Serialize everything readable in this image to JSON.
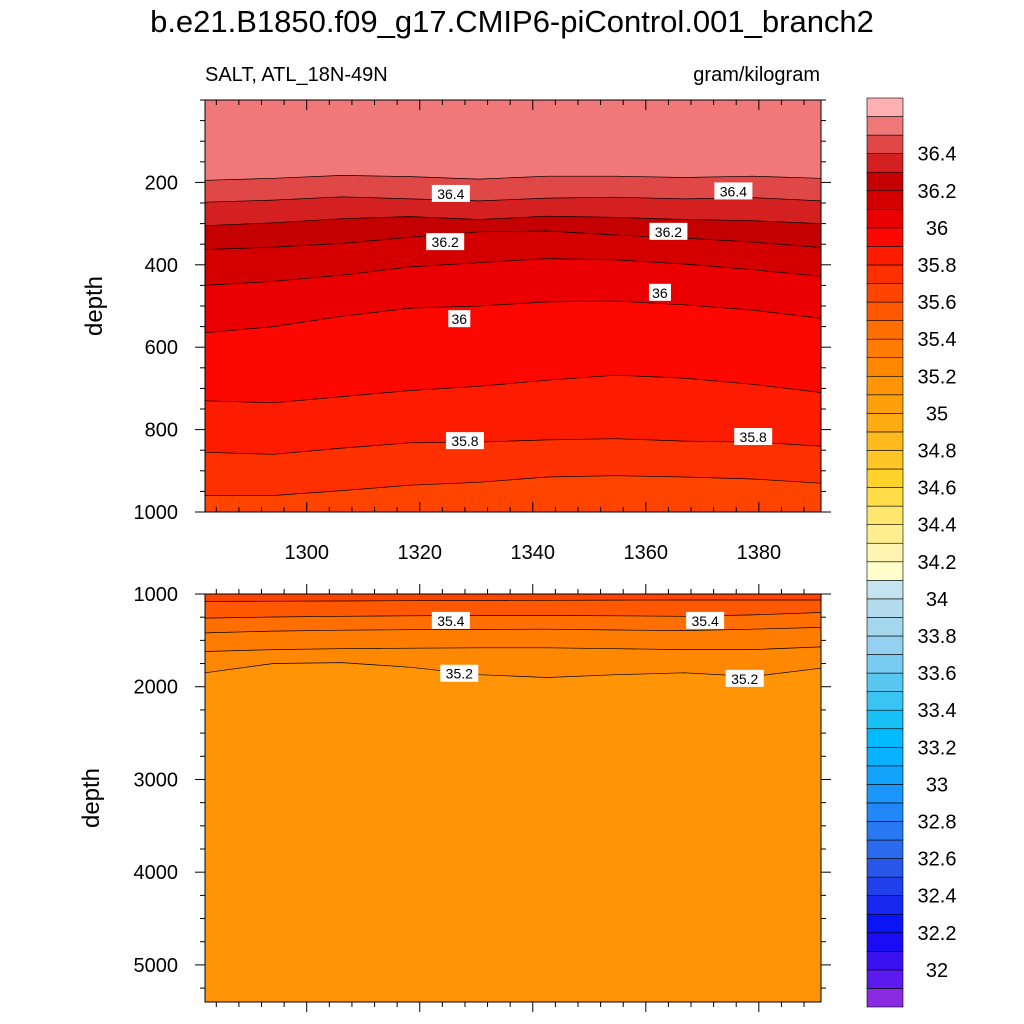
{
  "title": "b.e21.B1850.f09_g17.CMIP6-piControl.001_branch2",
  "chart_data": [
    {
      "type": "heatmap",
      "panel": "upper",
      "left_label": "SALT, ATL_18N-49N",
      "right_label": "gram/kilogram",
      "ylabel": "depth",
      "xlabel": "",
      "xlim": [
        1282,
        1391
      ],
      "ylim": [
        0,
        1000
      ],
      "y_reversed": true,
      "x_ticks": [
        1300,
        1320,
        1340,
        1360,
        1380
      ],
      "y_ticks": [
        200,
        400,
        600,
        800,
        1000
      ],
      "contours": [
        {
          "level": 36.5,
          "depth": [
            195,
            190,
            183,
            186,
            192,
            185,
            185,
            188,
            185,
            190
          ]
        },
        {
          "level": 36.4,
          "depth": [
            248,
            243,
            235,
            240,
            245,
            238,
            236,
            240,
            237,
            245
          ]
        },
        {
          "level": 36.3,
          "depth": [
            305,
            298,
            288,
            283,
            290,
            282,
            285,
            290,
            293,
            300
          ]
        },
        {
          "level": 36.2,
          "depth": [
            363,
            357,
            348,
            333,
            320,
            318,
            328,
            335,
            345,
            358
          ]
        },
        {
          "level": 36.1,
          "depth": [
            450,
            440,
            425,
            405,
            395,
            385,
            388,
            398,
            412,
            428
          ]
        },
        {
          "level": 36.0,
          "depth": [
            565,
            550,
            525,
            505,
            500,
            490,
            488,
            497,
            510,
            530
          ]
        },
        {
          "level": 35.9,
          "depth": [
            730,
            735,
            720,
            705,
            695,
            680,
            668,
            675,
            690,
            710
          ]
        },
        {
          "level": 35.8,
          "depth": [
            855,
            860,
            845,
            832,
            830,
            825,
            822,
            828,
            830,
            840
          ]
        },
        {
          "level": 35.7,
          "depth": [
            960,
            960,
            948,
            935,
            928,
            915,
            912,
            915,
            920,
            930
          ]
        }
      ],
      "contour_labels": [
        {
          "text": "36.4",
          "x": 1325.5,
          "y": 228
        },
        {
          "text": "36.4",
          "x": 1375.5,
          "y": 222
        },
        {
          "text": "36.2",
          "x": 1324.5,
          "y": 345
        },
        {
          "text": "36.2",
          "x": 1364,
          "y": 320
        },
        {
          "text": "36",
          "x": 1362.5,
          "y": 468
        },
        {
          "text": "36",
          "x": 1327,
          "y": 532
        },
        {
          "text": "35.8",
          "x": 1328,
          "y": 828
        },
        {
          "text": "35.8",
          "x": 1379,
          "y": 818
        }
      ]
    },
    {
      "type": "heatmap",
      "panel": "lower",
      "ylabel": "depth",
      "xlabel": "",
      "xlim": [
        1282,
        1391
      ],
      "ylim": [
        1000,
        5400
      ],
      "y_reversed": true,
      "x_ticks": [
        1300,
        1320,
        1340,
        1360,
        1380
      ],
      "y_ticks": [
        1000,
        2000,
        3000,
        4000,
        5000
      ],
      "fill_below": 35.1,
      "contours": [
        {
          "level": 35.6,
          "depth": [
            1080,
            1078,
            1075,
            1072,
            1070,
            1068,
            1066,
            1065,
            1065,
            1065
          ]
        },
        {
          "level": 35.5,
          "depth": [
            1260,
            1248,
            1240,
            1235,
            1232,
            1232,
            1235,
            1240,
            1225,
            1200
          ]
        },
        {
          "level": 35.4,
          "depth": [
            1420,
            1400,
            1390,
            1385,
            1382,
            1380,
            1388,
            1395,
            1380,
            1360
          ]
        },
        {
          "level": 35.3,
          "depth": [
            1620,
            1600,
            1590,
            1585,
            1580,
            1580,
            1590,
            1600,
            1600,
            1570
          ]
        },
        {
          "level": 35.2,
          "depth": [
            1850,
            1750,
            1740,
            1790,
            1870,
            1900,
            1870,
            1850,
            1890,
            1800
          ]
        }
      ],
      "contour_labels": [
        {
          "text": "35.4",
          "x": 1325.5,
          "y": 1290
        },
        {
          "text": "35.4",
          "x": 1370.5,
          "y": 1290
        },
        {
          "text": "35.2",
          "x": 1327,
          "y": 1860
        },
        {
          "text": "35.2",
          "x": 1377.5,
          "y": 1915
        }
      ]
    }
  ],
  "colorbar": {
    "levels": [
      31.9,
      32.0,
      32.1,
      32.2,
      32.3,
      32.4,
      32.5,
      32.6,
      32.7,
      32.8,
      32.9,
      33.0,
      33.1,
      33.2,
      33.3,
      33.4,
      33.5,
      33.6,
      33.7,
      33.8,
      33.9,
      34.0,
      34.1,
      34.2,
      34.3,
      34.4,
      34.5,
      34.6,
      34.7,
      34.8,
      34.9,
      35.0,
      35.1,
      35.2,
      35.3,
      35.4,
      35.5,
      35.6,
      35.7,
      35.8,
      35.9,
      36.0,
      36.1,
      36.2,
      36.3,
      36.4,
      36.5,
      36.6
    ],
    "colors": [
      "#8a2be2",
      "#5a1af0",
      "#3a12f2",
      "#1a0cf4",
      "#0a14f5",
      "#1828f0",
      "#2040ec",
      "#2856e8",
      "#2a6aee",
      "#2878f4",
      "#2288fa",
      "#1a96fc",
      "#12a4fd",
      "#08b2fe",
      "#00bcfe",
      "#18c0f8",
      "#3ac4f4",
      "#58c8f2",
      "#78ccf2",
      "#94d0f0",
      "#a4d6ee",
      "#b2dcee",
      "#c4e4f0",
      "#ffffcc",
      "#fff4b0",
      "#ffee90",
      "#ffe66c",
      "#ffdc48",
      "#ffd22c",
      "#fec626",
      "#feba1c",
      "#feac12",
      "#fea00c",
      "#fe9406",
      "#fe8802",
      "#ff7c00",
      "#ff6e00",
      "#ff5800",
      "#ff4400",
      "#ff3000",
      "#fe1c00",
      "#fc0800",
      "#ea0000",
      "#d40000",
      "#c40000",
      "#d42020",
      "#e04848",
      "#f07878",
      "#ffb0b0"
    ],
    "tick_labels": [
      "32",
      "32.2",
      "32.4",
      "32.6",
      "32.8",
      "33",
      "33.2",
      "33.4",
      "33.6",
      "33.8",
      "34",
      "34.2",
      "34.4",
      "34.6",
      "34.8",
      "35",
      "35.2",
      "35.4",
      "35.6",
      "35.8",
      "36",
      "36.2",
      "36.4"
    ]
  }
}
